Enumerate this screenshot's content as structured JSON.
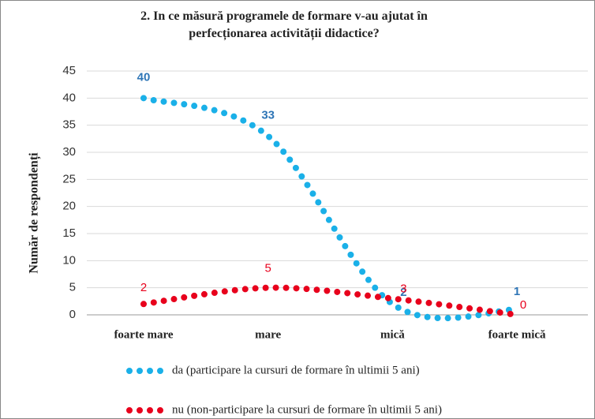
{
  "chart_data": {
    "type": "line",
    "title": "2. In ce măsură programele de formare v-au ajutat în perfecționarea activității didactice?",
    "ylabel": "Număr de respondenți",
    "categories": [
      "foarte mare",
      "mare",
      "mică",
      "foarte mică"
    ],
    "series": [
      {
        "name": "da (participare la cursuri de formare în ultimii 5 ani)",
        "color": "#1ab0e8",
        "label_color": "#2e75b6",
        "values": [
          40,
          33,
          2,
          1
        ]
      },
      {
        "name": "nu (non-participare la cursuri de formare în ultimii 5 ani)",
        "color": "#e8001c",
        "label_color": "#e8001c",
        "values": [
          2,
          5,
          3,
          0
        ]
      }
    ],
    "ylim": [
      0,
      45
    ],
    "yticks": [
      0,
      5,
      10,
      15,
      20,
      25,
      30,
      35,
      40,
      45
    ],
    "grid": true,
    "legend": "bottom"
  }
}
